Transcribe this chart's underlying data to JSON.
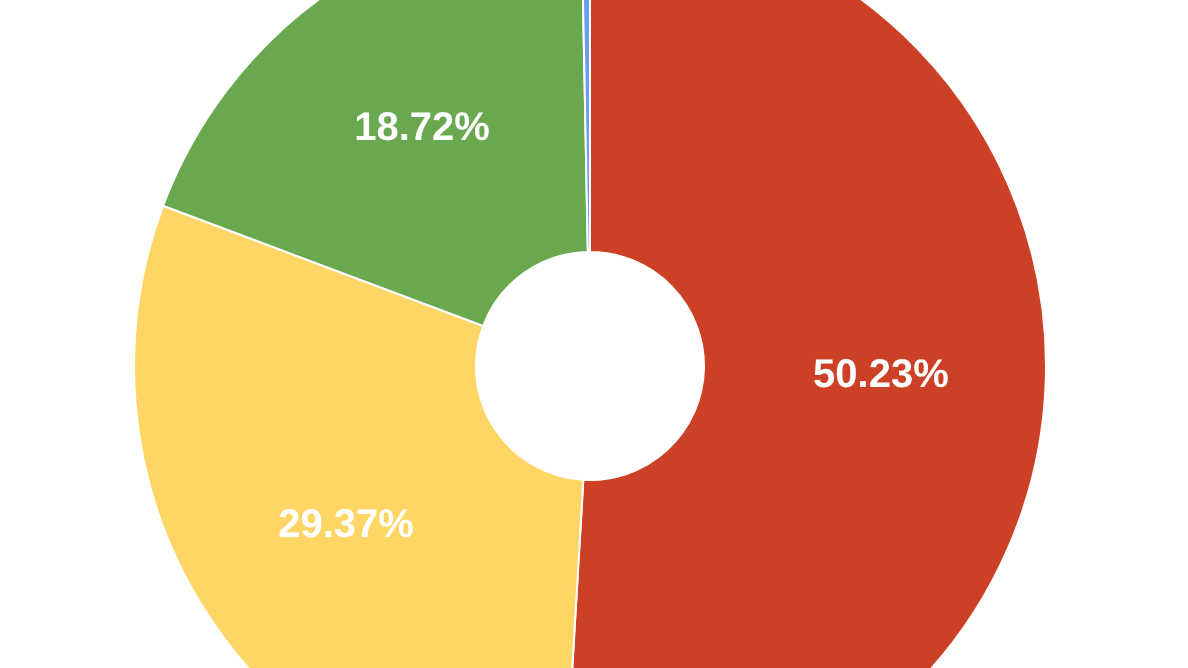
{
  "chart_data": {
    "type": "donut",
    "categories": [
      null,
      null,
      null,
      null
    ],
    "values": [
      50.23,
      29.37,
      18.72,
      0.3
    ],
    "colors": [
      "#cc4125",
      "#ffd666",
      "#6aa84f",
      "#6d9eeb"
    ],
    "value_labels": [
      "50.23%",
      "29.37%",
      "18.72%",
      null
    ]
  }
}
